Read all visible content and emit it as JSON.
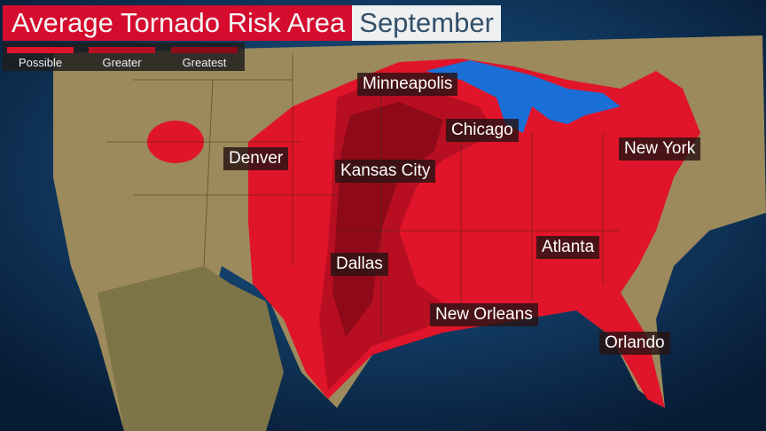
{
  "title": "Average Tornado Risk Area",
  "month": "September",
  "legend": [
    {
      "label": "Possible",
      "color": "#e0142a"
    },
    {
      "label": "Greater",
      "color": "#b80e22"
    },
    {
      "label": "Greatest",
      "color": "#8e0a18"
    }
  ],
  "cities": [
    {
      "name": "Minneapolis"
    },
    {
      "name": "Chicago"
    },
    {
      "name": "Denver"
    },
    {
      "name": "Kansas City"
    },
    {
      "name": "New York"
    },
    {
      "name": "Atlanta"
    },
    {
      "name": "Dallas"
    },
    {
      "name": "New Orleans"
    },
    {
      "name": "Orlando"
    }
  ],
  "colors": {
    "ocean": "#123a66",
    "land": "#9c8a5c",
    "lakes": "#1a6fd6"
  }
}
